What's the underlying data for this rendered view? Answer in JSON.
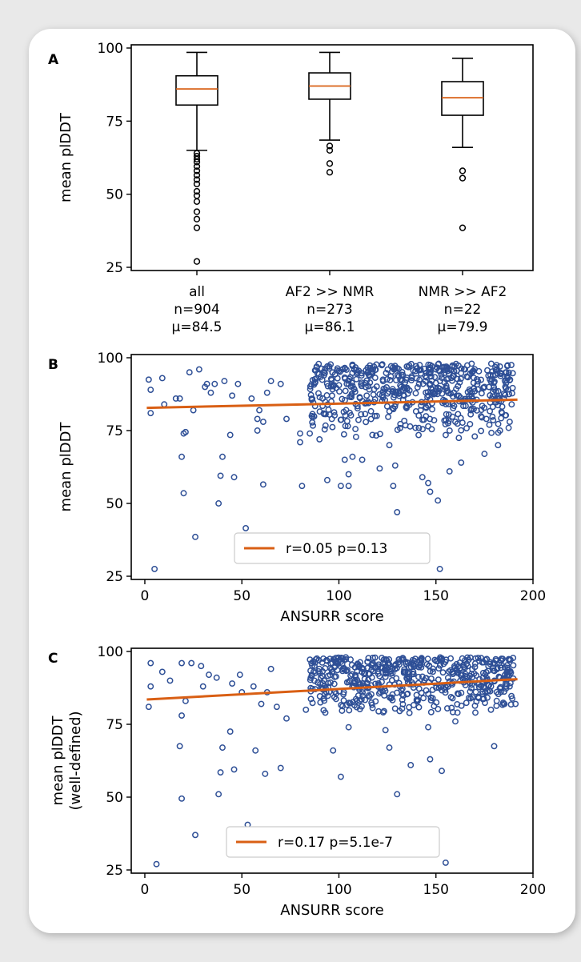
{
  "colors": {
    "scatter": "#2e4f96",
    "trend": "#d95f14",
    "box": "#000000",
    "median": "#d95f14"
  },
  "chart_data": [
    {
      "panel": "A",
      "type": "box",
      "ylabel": "mean plDDT",
      "ylim": [
        25,
        100
      ],
      "yticks": [
        25,
        50,
        75,
        100
      ],
      "groups": [
        {
          "label": "all",
          "n": "n=904",
          "mu": "μ=84.5",
          "whisker_low": 65,
          "q1": 80.5,
          "median": 86,
          "q3": 90.5,
          "whisker_high": 98.5,
          "outliers": [
            27,
            38.5,
            41.5,
            44,
            47.5,
            49.5,
            51,
            53.5,
            55,
            56.5,
            58,
            59.5,
            61,
            62,
            63,
            64
          ]
        },
        {
          "label": "AF2 >> NMR",
          "n": "n=273",
          "mu": "μ=86.1",
          "whisker_low": 68.5,
          "q1": 82.5,
          "median": 87,
          "q3": 91.5,
          "whisker_high": 98.5,
          "outliers": [
            57.5,
            60.5,
            65,
            66.5
          ]
        },
        {
          "label": "NMR >> AF2",
          "n": "n=22",
          "mu": "μ=79.9",
          "whisker_low": 66,
          "q1": 77,
          "median": 83,
          "q3": 88.5,
          "whisker_high": 96.5,
          "outliers": [
            38.5,
            55.5,
            58
          ]
        }
      ]
    },
    {
      "panel": "B",
      "type": "scatter",
      "xlabel": "ANSURR score",
      "ylabel": "mean plDDT",
      "xlim": [
        -7,
        200
      ],
      "ylim": [
        25,
        100
      ],
      "xticks": [
        0,
        50,
        100,
        150,
        200
      ],
      "yticks": [
        25,
        50,
        75,
        100
      ],
      "legend": "r=0.05 p=0.13",
      "legend_position": "lower-center",
      "trend": {
        "x": [
          1,
          192
        ],
        "y": [
          82.8,
          85.6
        ]
      },
      "points": [
        [
          5,
          27.5
        ],
        [
          26,
          38.5
        ],
        [
          52,
          41.5
        ],
        [
          38,
          50
        ],
        [
          20,
          53.5
        ],
        [
          39,
          59.5
        ],
        [
          46,
          59
        ],
        [
          61,
          56.5
        ],
        [
          40,
          66
        ],
        [
          19,
          66
        ],
        [
          20,
          74
        ],
        [
          21,
          74.5
        ],
        [
          44,
          73.5
        ],
        [
          16,
          86
        ],
        [
          25,
          82
        ],
        [
          34,
          88
        ],
        [
          31,
          90
        ],
        [
          41,
          92
        ],
        [
          45,
          87
        ],
        [
          48,
          91
        ],
        [
          59,
          82
        ],
        [
          55,
          86
        ],
        [
          58,
          79
        ],
        [
          61,
          78
        ],
        [
          58,
          75
        ],
        [
          63,
          88
        ],
        [
          65,
          92
        ],
        [
          70,
          91
        ],
        [
          73,
          79
        ],
        [
          80,
          74
        ],
        [
          86,
          80
        ],
        [
          90,
          72
        ],
        [
          81,
          56
        ],
        [
          94,
          58
        ],
        [
          101,
          56
        ],
        [
          105,
          60
        ],
        [
          105,
          56
        ],
        [
          107,
          66
        ],
        [
          103,
          65
        ],
        [
          112,
          65
        ],
        [
          121,
          62
        ],
        [
          126,
          70
        ],
        [
          129,
          63
        ],
        [
          130,
          47
        ],
        [
          128,
          56
        ],
        [
          143,
          59
        ],
        [
          146,
          57
        ],
        [
          147,
          54
        ],
        [
          151,
          51
        ],
        [
          157,
          61
        ],
        [
          163,
          64
        ],
        [
          175,
          67
        ],
        [
          160,
          78
        ],
        [
          170,
          73
        ],
        [
          182,
          70
        ],
        [
          152,
          27.5
        ],
        [
          2,
          92.5
        ],
        [
          3,
          81
        ],
        [
          3,
          89
        ],
        [
          9,
          93
        ],
        [
          18,
          86
        ],
        [
          28,
          96
        ],
        [
          23,
          95
        ],
        [
          10,
          84
        ],
        [
          32,
          91
        ],
        [
          36,
          91
        ],
        [
          80,
          71
        ],
        [
          85,
          74
        ],
        [
          95,
          97
        ],
        [
          118,
          97
        ],
        [
          135,
          97
        ],
        [
          150,
          96
        ],
        [
          165,
          96
        ],
        [
          175,
          90
        ],
        [
          185,
          86
        ],
        [
          189,
          84
        ],
        [
          188,
          78
        ],
        [
          183,
          75
        ],
        [
          176,
          79
        ],
        [
          168,
          82
        ]
      ]
    },
    {
      "panel": "C",
      "type": "scatter",
      "xlabel": "ANSURR score",
      "ylabel": "mean plDDT",
      "ylabel2": "(well-defined)",
      "xlim": [
        -7,
        200
      ],
      "ylim": [
        25,
        100
      ],
      "xticks": [
        0,
        50,
        100,
        150,
        200
      ],
      "yticks": [
        25,
        50,
        75,
        100
      ],
      "legend": "r=0.17 p=5.1e-7",
      "legend_position": "lower-center",
      "trend": {
        "x": [
          1,
          192
        ],
        "y": [
          83.5,
          90.5
        ]
      },
      "points": [
        [
          6,
          27
        ],
        [
          26,
          37
        ],
        [
          53,
          40.5
        ],
        [
          38,
          51
        ],
        [
          19,
          49.5
        ],
        [
          39,
          58.5
        ],
        [
          46,
          59.5
        ],
        [
          62,
          58
        ],
        [
          70,
          60
        ],
        [
          101,
          57
        ],
        [
          130,
          51
        ],
        [
          137,
          61
        ],
        [
          153,
          59
        ],
        [
          18,
          67.5
        ],
        [
          40,
          67
        ],
        [
          57,
          66
        ],
        [
          44,
          72.5
        ],
        [
          97,
          66
        ],
        [
          126,
          67
        ],
        [
          147,
          63
        ],
        [
          180,
          67.5
        ],
        [
          3,
          96
        ],
        [
          9,
          93
        ],
        [
          19,
          96
        ],
        [
          24,
          96
        ],
        [
          29,
          95
        ],
        [
          33,
          92
        ],
        [
          37,
          91
        ],
        [
          13,
          90
        ],
        [
          2,
          81
        ],
        [
          3,
          88
        ],
        [
          19,
          78
        ],
        [
          30,
          88
        ],
        [
          45,
          89
        ],
        [
          49,
          92
        ],
        [
          63,
          86
        ],
        [
          60,
          82
        ],
        [
          65,
          94
        ],
        [
          68,
          81
        ],
        [
          73,
          77
        ],
        [
          83,
          80
        ],
        [
          93,
          79
        ],
        [
          105,
          74
        ],
        [
          124,
          73
        ],
        [
          146,
          74
        ],
        [
          160,
          76
        ],
        [
          172,
          84
        ],
        [
          185,
          82
        ],
        [
          191,
          82
        ],
        [
          188,
          88
        ],
        [
          183,
          91
        ],
        [
          177,
          95
        ],
        [
          155,
          27.5
        ],
        [
          21,
          83
        ],
        [
          50,
          86
        ],
        [
          56,
          88
        ]
      ]
    }
  ]
}
